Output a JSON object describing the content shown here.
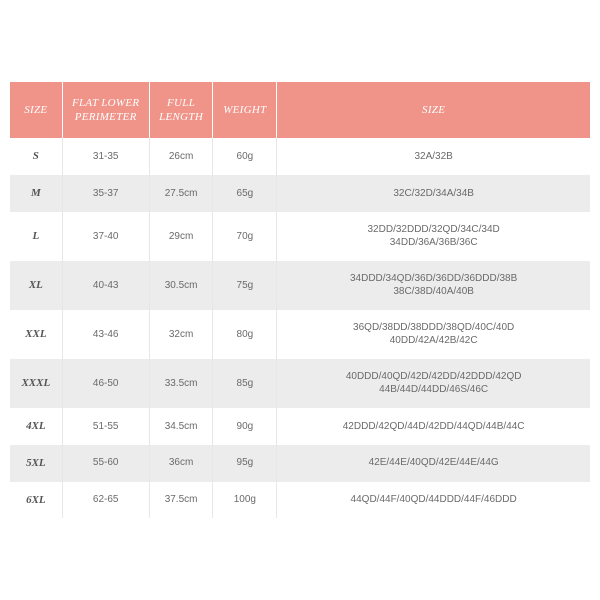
{
  "colors": {
    "header_bg": "#f0948a",
    "row_odd": "#ffffff",
    "row_even": "#ececec",
    "border": "#e7e7e7",
    "text": "#6a6a6a"
  },
  "columns": [
    {
      "label": "SIZE"
    },
    {
      "label": "FLAT LOWER\nPERIMETER"
    },
    {
      "label": "FULL\nLENGTH"
    },
    {
      "label": "WEIGHT"
    },
    {
      "label": "SIZE"
    }
  ],
  "rows": [
    {
      "size": "S",
      "perimeter": "31-35",
      "length": "26cm",
      "weight": "60g",
      "fit": "32A/32B"
    },
    {
      "size": "M",
      "perimeter": "35-37",
      "length": "27.5cm",
      "weight": "65g",
      "fit": "32C/32D/34A/34B"
    },
    {
      "size": "L",
      "perimeter": "37-40",
      "length": "29cm",
      "weight": "70g",
      "fit": "32DD/32DDD/32QD/34C/34D\n34DD/36A/36B/36C"
    },
    {
      "size": "XL",
      "perimeter": "40-43",
      "length": "30.5cm",
      "weight": "75g",
      "fit": "34DDD/34QD/36D/36DD/36DDD/38B\n38C/38D/40A/40B"
    },
    {
      "size": "XXL",
      "perimeter": "43-46",
      "length": "32cm",
      "weight": "80g",
      "fit": "36QD/38DD/38DDD/38QD/40C/40D\n40DD/42A/42B/42C"
    },
    {
      "size": "XXXL",
      "perimeter": "46-50",
      "length": "33.5cm",
      "weight": "85g",
      "fit": "40DDD/40QD/42D/42DD/42DDD/42QD\n44B/44D/44DD/46S/46C"
    },
    {
      "size": "4XL",
      "perimeter": "51-55",
      "length": "34.5cm",
      "weight": "90g",
      "fit": "42DDD/42QD/44D/42DD/44QD/44B/44C"
    },
    {
      "size": "5XL",
      "perimeter": "55-60",
      "length": "36cm",
      "weight": "95g",
      "fit": "42E/44E/40QD/42E/44E/44G"
    },
    {
      "size": "6XL",
      "perimeter": "62-65",
      "length": "37.5cm",
      "weight": "100g",
      "fit": "44QD/44F/40QD/44DDD/44F/46DDD"
    }
  ]
}
